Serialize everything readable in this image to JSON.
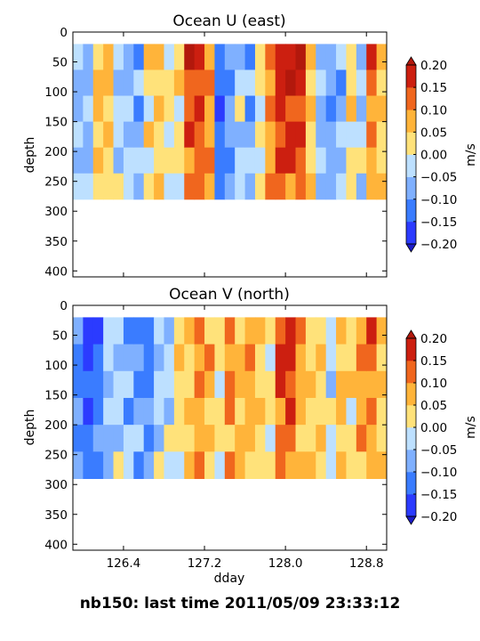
{
  "footer_text": "nb150: last time 2011/05/09 23:33:12",
  "chart_data": [
    {
      "type": "heatmap",
      "title": "Ocean U (east)",
      "xlabel": "",
      "ylabel": "depth",
      "xlim": [
        125.9,
        129.0
      ],
      "ylim": [
        410,
        0
      ],
      "y_inverted": true,
      "yticks": [
        0,
        50,
        100,
        150,
        200,
        250,
        300,
        350,
        400
      ],
      "xticks": [
        126.4,
        127.2,
        128.0,
        128.8
      ],
      "show_xtick_labels": false,
      "data_depth_range": [
        20,
        280
      ],
      "colorbar": {
        "label": "m/s",
        "ticks": [
          "0.20",
          "0.15",
          "0.10",
          "0.05",
          "0.00",
          "−0.05",
          "−0.10",
          "−0.15",
          "−0.20"
        ],
        "levels": [
          -0.2,
          -0.15,
          -0.1,
          -0.05,
          0.0,
          0.05,
          0.1,
          0.15,
          0.2
        ],
        "extend": "both"
      },
      "columns": [
        {
          "x": 125.95,
          "v": -0.06
        },
        {
          "x": 126.05,
          "v": -0.08
        },
        {
          "x": 126.15,
          "v": 0.07
        },
        {
          "x": 126.25,
          "v": 0.05
        },
        {
          "x": 126.35,
          "v": -0.03
        },
        {
          "x": 126.45,
          "v": -0.07
        },
        {
          "x": 126.55,
          "v": -0.09
        },
        {
          "x": 126.65,
          "v": 0.02
        },
        {
          "x": 126.75,
          "v": 0.04
        },
        {
          "x": 126.85,
          "v": 0.01
        },
        {
          "x": 126.95,
          "v": 0.03
        },
        {
          "x": 127.05,
          "v": 0.17
        },
        {
          "x": 127.15,
          "v": 0.16
        },
        {
          "x": 127.25,
          "v": 0.11
        },
        {
          "x": 127.35,
          "v": -0.16
        },
        {
          "x": 127.45,
          "v": -0.12
        },
        {
          "x": 127.55,
          "v": -0.03
        },
        {
          "x": 127.65,
          "v": -0.09
        },
        {
          "x": 127.75,
          "v": 0.01
        },
        {
          "x": 127.85,
          "v": 0.12
        },
        {
          "x": 127.95,
          "v": 0.19
        },
        {
          "x": 128.05,
          "v": 0.19
        },
        {
          "x": 128.15,
          "v": 0.18
        },
        {
          "x": 128.25,
          "v": 0.06
        },
        {
          "x": 128.35,
          "v": -0.06
        },
        {
          "x": 128.45,
          "v": -0.1
        },
        {
          "x": 128.55,
          "v": -0.08
        },
        {
          "x": 128.65,
          "v": 0.02
        },
        {
          "x": 128.75,
          "v": -0.04
        },
        {
          "x": 128.85,
          "v": 0.13
        },
        {
          "x": 128.95,
          "v": 0.05
        }
      ]
    },
    {
      "type": "heatmap",
      "title": "Ocean V (north)",
      "xlabel": "dday",
      "ylabel": "depth",
      "xlim": [
        125.9,
        129.0
      ],
      "ylim": [
        410,
        0
      ],
      "y_inverted": true,
      "yticks": [
        0,
        50,
        100,
        150,
        200,
        250,
        300,
        350,
        400
      ],
      "xticks": [
        126.4,
        127.2,
        128.0,
        128.8
      ],
      "show_xtick_labels": true,
      "data_depth_range": [
        20,
        290
      ],
      "colorbar": {
        "label": "m/s",
        "ticks": [
          "0.20",
          "0.15",
          "0.10",
          "0.05",
          "0.00",
          "−0.05",
          "−0.10",
          "−0.15",
          "−0.20"
        ],
        "levels": [
          -0.2,
          -0.15,
          -0.1,
          -0.05,
          0.0,
          0.05,
          0.1,
          0.15,
          0.2
        ],
        "extend": "both"
      },
      "columns": [
        {
          "x": 125.95,
          "v": -0.12
        },
        {
          "x": 126.05,
          "v": -0.18
        },
        {
          "x": 126.15,
          "v": -0.15
        },
        {
          "x": 126.25,
          "v": -0.06
        },
        {
          "x": 126.35,
          "v": -0.04
        },
        {
          "x": 126.45,
          "v": -0.08
        },
        {
          "x": 126.55,
          "v": -0.1
        },
        {
          "x": 126.65,
          "v": -0.14
        },
        {
          "x": 126.75,
          "v": -0.04
        },
        {
          "x": 126.85,
          "v": -0.03
        },
        {
          "x": 126.95,
          "v": 0.04
        },
        {
          "x": 127.05,
          "v": 0.06
        },
        {
          "x": 127.15,
          "v": 0.13
        },
        {
          "x": 127.25,
          "v": 0.08
        },
        {
          "x": 127.35,
          "v": 0.02
        },
        {
          "x": 127.45,
          "v": 0.11
        },
        {
          "x": 127.55,
          "v": 0.07
        },
        {
          "x": 127.65,
          "v": 0.09
        },
        {
          "x": 127.75,
          "v": 0.03
        },
        {
          "x": 127.85,
          "v": 0.02
        },
        {
          "x": 127.95,
          "v": 0.16
        },
        {
          "x": 128.05,
          "v": 0.17
        },
        {
          "x": 128.15,
          "v": 0.08
        },
        {
          "x": 128.25,
          "v": 0.03
        },
        {
          "x": 128.35,
          "v": 0.04
        },
        {
          "x": 128.45,
          "v": -0.03
        },
        {
          "x": 128.55,
          "v": 0.06
        },
        {
          "x": 128.65,
          "v": 0.02
        },
        {
          "x": 128.75,
          "v": 0.09
        },
        {
          "x": 128.85,
          "v": 0.14
        },
        {
          "x": 128.95,
          "v": 0.04
        }
      ]
    }
  ],
  "colors": {
    "palette": [
      "#2b3bff",
      "#3a7cff",
      "#7fb0ff",
      "#bde0ff",
      "#fffdd8",
      "#ffe27a",
      "#ffb43a",
      "#f0661e",
      "#cc1f10"
    ],
    "extend_low": "#1c1cc8",
    "extend_high": "#b2180c"
  }
}
